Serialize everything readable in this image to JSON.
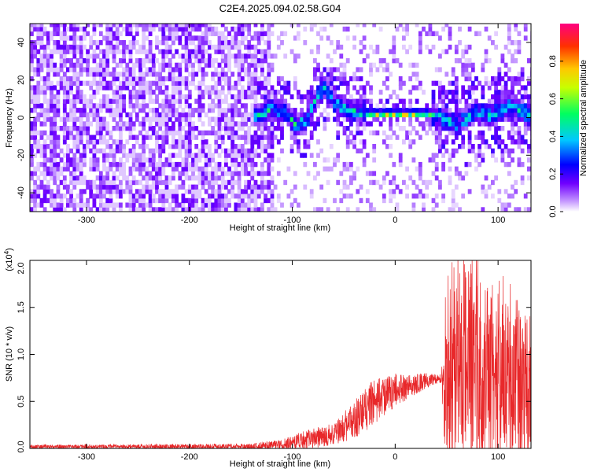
{
  "figure": {
    "title": "C2E4.2025.094.02.58.G04"
  },
  "chart_data": [
    {
      "type": "heatmap",
      "name": "spectrogram",
      "xlabel": "Height of straight line (km)",
      "ylabel": "Frequency (Hz)",
      "xlim": [
        -355,
        132
      ],
      "ylim": [
        -50,
        50
      ],
      "x_ticks": [
        -300,
        -200,
        -100,
        0,
        100
      ],
      "x_tick_labels": [
        "-300",
        "-200",
        "-100",
        "0",
        "100"
      ],
      "y_ticks": [
        -40,
        -20,
        0,
        20,
        40
      ],
      "y_tick_labels": [
        "-40",
        "-20",
        "0",
        "20",
        "40"
      ],
      "colorbar": {
        "label": "Normalized spectral amplitude",
        "range": [
          0,
          1
        ],
        "ticks": [
          0.0,
          0.2,
          0.4,
          0.6,
          0.8
        ],
        "tick_labels": [
          "0.0",
          "0.2",
          "0.4",
          "0.6",
          "0.8"
        ],
        "colors": [
          "#ffffff",
          "#8000ff",
          "#0000ff",
          "#00c8ff",
          "#00ff60",
          "#c8ff00",
          "#ffc800",
          "#ff3000",
          "#ff0080"
        ]
      },
      "features": {
        "noise_region": [
          -355,
          -120
        ],
        "sparse_region": [
          -130,
          -60
        ],
        "signal_track": [
          {
            "x": -135,
            "f": 0
          },
          {
            "x": -120,
            "f": 4
          },
          {
            "x": -108,
            "f": 2
          },
          {
            "x": -98,
            "f": -5
          },
          {
            "x": -88,
            "f": -3
          },
          {
            "x": -78,
            "f": 10
          },
          {
            "x": -70,
            "f": 15
          },
          {
            "x": -60,
            "f": 6
          },
          {
            "x": -45,
            "f": 3
          },
          {
            "x": -30,
            "f": 1
          },
          {
            "x": 0,
            "f": 1
          },
          {
            "x": 30,
            "f": 1
          },
          {
            "x": 45,
            "f": -2
          },
          {
            "x": 60,
            "f": -5
          },
          {
            "x": 75,
            "f": 2
          },
          {
            "x": 90,
            "f": 0
          },
          {
            "x": 110,
            "f": 5
          },
          {
            "x": 130,
            "f": 0
          }
        ],
        "hot_segment": [
          -30,
          35
        ],
        "hot_value": 0.95
      }
    },
    {
      "type": "line",
      "name": "snr",
      "xlabel": "Height of straight line (km)",
      "ylabel": "SNR (10 * v/v)",
      "scale_note_prefix": "(x10",
      "scale_note_exp": "4",
      "scale_note_suffix": ")",
      "xlim": [
        -355,
        132
      ],
      "ylim": [
        0,
        2.0
      ],
      "x_ticks": [
        -300,
        -200,
        -100,
        0,
        100
      ],
      "x_tick_labels": [
        "-300",
        "-200",
        "-100",
        "0",
        "100"
      ],
      "y_ticks": [
        0.0,
        0.5,
        1.0,
        1.5,
        2.0
      ],
      "y_tick_labels": [
        "0.0",
        "0.5",
        "1.0",
        "1.5",
        "2.0"
      ],
      "color": "#e8282a",
      "envelope": [
        {
          "x": -355,
          "base": 0.02,
          "amp": 0.02
        },
        {
          "x": -140,
          "base": 0.02,
          "amp": 0.03
        },
        {
          "x": -110,
          "base": 0.04,
          "amp": 0.06
        },
        {
          "x": -90,
          "base": 0.08,
          "amp": 0.1
        },
        {
          "x": -60,
          "base": 0.15,
          "amp": 0.12
        },
        {
          "x": -40,
          "base": 0.3,
          "amp": 0.2
        },
        {
          "x": -20,
          "base": 0.5,
          "amp": 0.25
        },
        {
          "x": 0,
          "base": 0.62,
          "amp": 0.18
        },
        {
          "x": 30,
          "base": 0.72,
          "amp": 0.08
        },
        {
          "x": 45,
          "base": 0.75,
          "amp": 0.05
        },
        {
          "x": 48,
          "base": 0.8,
          "amp": 0.85
        },
        {
          "x": 70,
          "base": 0.85,
          "amp": 1.05
        },
        {
          "x": 100,
          "base": 0.75,
          "amp": 0.9
        },
        {
          "x": 132,
          "base": 0.6,
          "amp": 0.8
        }
      ]
    }
  ]
}
